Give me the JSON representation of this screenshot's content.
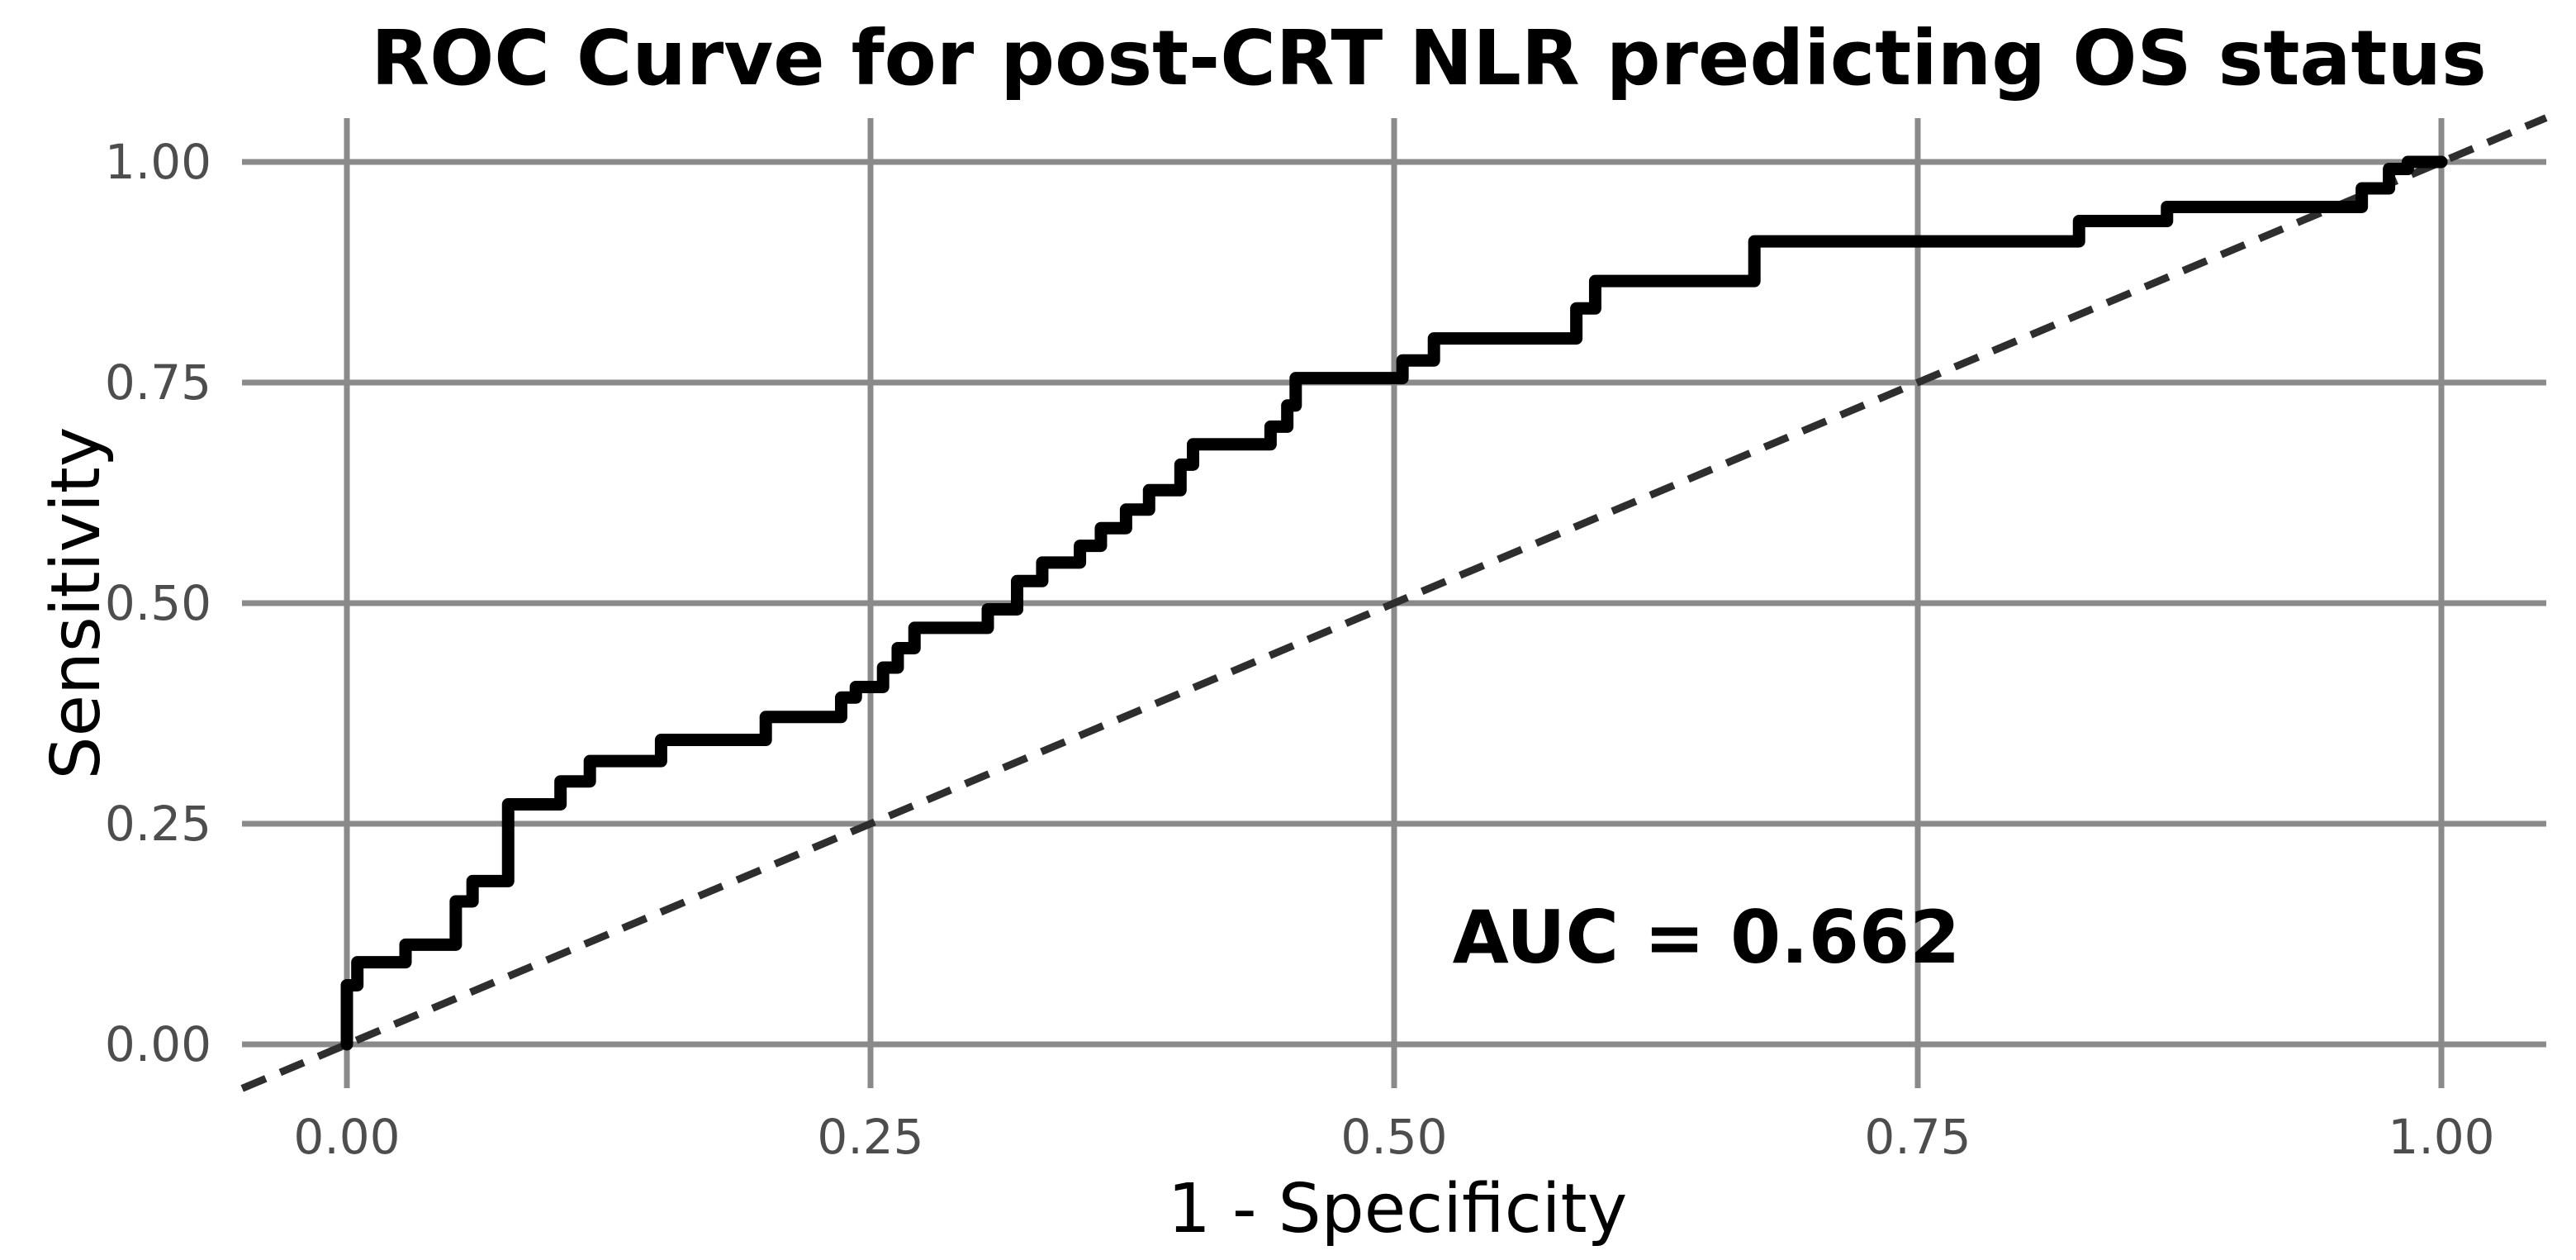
{
  "title": "ROC Curve for post-CRT NLR predicting OS status",
  "axes": {
    "x_label": "1 - Specificity",
    "y_label": "Sensitivity",
    "x_tick_labels": [
      "0.00",
      "0.25",
      "0.50",
      "0.75",
      "1.00"
    ],
    "y_tick_labels": [
      "0.00",
      "0.25",
      "0.50",
      "0.75",
      "1.00"
    ]
  },
  "annotation": {
    "auc_text": "AUC = 0.662"
  },
  "colors": {
    "background": "#ffffff",
    "gridline": "#8a8a8a",
    "roc_curve": "#000000",
    "reference_line": "#2e2e2e",
    "tick_label": "#4d4d4d",
    "axis_label": "#000000",
    "title": "#000000"
  },
  "chart_data": {
    "type": "line",
    "title": "ROC Curve for post-CRT NLR predicting OS status",
    "xlabel": "1 - Specificity",
    "ylabel": "Sensitivity",
    "xlim": [
      -0.05,
      1.05
    ],
    "ylim": [
      -0.05,
      1.05
    ],
    "grid": true,
    "legend": "none",
    "auc": 0.662,
    "x_ticks": {
      "values": [
        0,
        0.25,
        0.5,
        0.75,
        1.0
      ],
      "labels": [
        "0.00",
        "0.25",
        "0.50",
        "0.75",
        "1.00"
      ]
    },
    "y_ticks": {
      "values": [
        0,
        0.25,
        0.5,
        0.75,
        1.0
      ],
      "labels": [
        "0.00",
        "0.25",
        "0.50",
        "0.75",
        "1.00"
      ]
    },
    "annotations": [
      {
        "text": "AUC = 0.662",
        "x": 0.649,
        "y": 0.122,
        "bold": true
      }
    ],
    "series": [
      {
        "name": "ROC curve",
        "style": "step-solid",
        "color": "#000000",
        "points": [
          [
            0.0,
            0.0
          ],
          [
            0.0,
            0.067
          ],
          [
            0.005,
            0.067
          ],
          [
            0.005,
            0.093
          ],
          [
            0.028,
            0.093
          ],
          [
            0.028,
            0.113
          ],
          [
            0.052,
            0.113
          ],
          [
            0.052,
            0.162
          ],
          [
            0.06,
            0.162
          ],
          [
            0.06,
            0.185
          ],
          [
            0.077,
            0.185
          ],
          [
            0.077,
            0.272
          ],
          [
            0.102,
            0.272
          ],
          [
            0.102,
            0.298
          ],
          [
            0.116,
            0.298
          ],
          [
            0.116,
            0.321
          ],
          [
            0.15,
            0.321
          ],
          [
            0.15,
            0.345
          ],
          [
            0.2,
            0.345
          ],
          [
            0.2,
            0.371
          ],
          [
            0.236,
            0.371
          ],
          [
            0.236,
            0.393
          ],
          [
            0.243,
            0.393
          ],
          [
            0.243,
            0.405
          ],
          [
            0.256,
            0.405
          ],
          [
            0.256,
            0.427
          ],
          [
            0.263,
            0.427
          ],
          [
            0.263,
            0.449
          ],
          [
            0.271,
            0.449
          ],
          [
            0.271,
            0.472
          ],
          [
            0.306,
            0.472
          ],
          [
            0.306,
            0.493
          ],
          [
            0.32,
            0.493
          ],
          [
            0.32,
            0.525
          ],
          [
            0.332,
            0.525
          ],
          [
            0.332,
            0.546
          ],
          [
            0.35,
            0.546
          ],
          [
            0.35,
            0.565
          ],
          [
            0.36,
            0.565
          ],
          [
            0.36,
            0.585
          ],
          [
            0.372,
            0.585
          ],
          [
            0.372,
            0.606
          ],
          [
            0.383,
            0.606
          ],
          [
            0.383,
            0.628
          ],
          [
            0.398,
            0.628
          ],
          [
            0.398,
            0.657
          ],
          [
            0.404,
            0.657
          ],
          [
            0.404,
            0.68
          ],
          [
            0.441,
            0.68
          ],
          [
            0.441,
            0.7
          ],
          [
            0.449,
            0.7
          ],
          [
            0.449,
            0.724
          ],
          [
            0.453,
            0.724
          ],
          [
            0.453,
            0.755
          ],
          [
            0.504,
            0.755
          ],
          [
            0.504,
            0.775
          ],
          [
            0.519,
            0.775
          ],
          [
            0.519,
            0.8
          ],
          [
            0.587,
            0.8
          ],
          [
            0.587,
            0.834
          ],
          [
            0.596,
            0.834
          ],
          [
            0.596,
            0.865
          ],
          [
            0.672,
            0.865
          ],
          [
            0.672,
            0.91
          ],
          [
            0.827,
            0.91
          ],
          [
            0.827,
            0.933
          ],
          [
            0.869,
            0.933
          ],
          [
            0.869,
            0.949
          ],
          [
            0.962,
            0.949
          ],
          [
            0.962,
            0.97
          ],
          [
            0.975,
            0.97
          ],
          [
            0.975,
            0.992
          ],
          [
            0.984,
            0.992
          ],
          [
            0.984,
            1.0
          ],
          [
            1.0,
            1.0
          ]
        ]
      },
      {
        "name": "Chance diagonal",
        "style": "dashed",
        "color": "#2e2e2e",
        "points": [
          [
            -0.05,
            -0.05
          ],
          [
            1.05,
            1.05
          ]
        ]
      }
    ]
  }
}
